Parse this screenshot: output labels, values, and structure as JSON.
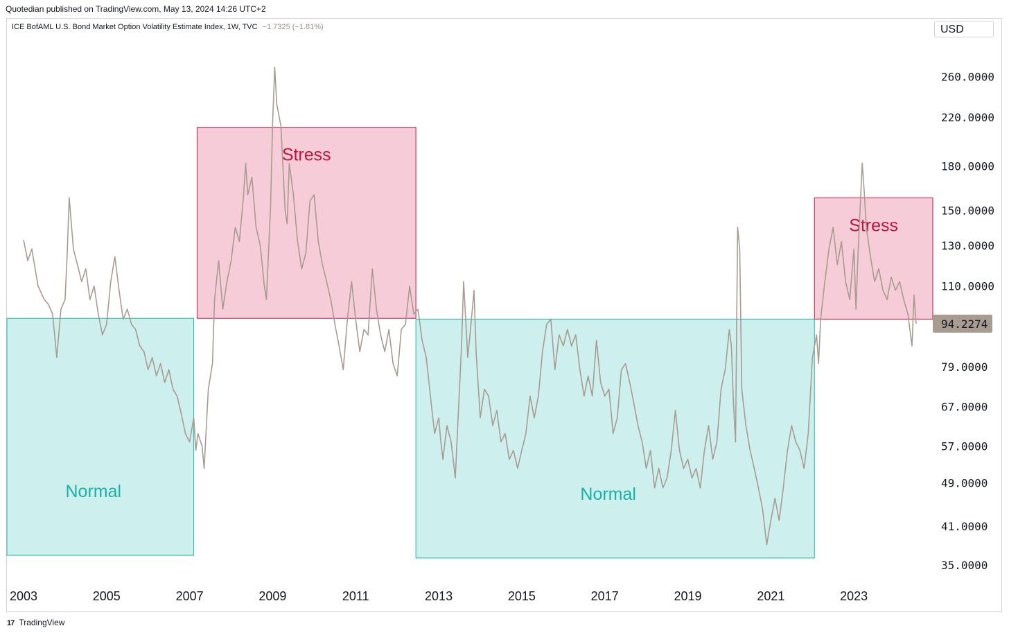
{
  "header": {
    "published": "Quotedian published on TradingView.com, May 13, 2024 14:26 UTC+2"
  },
  "legend": {
    "symbol": "ICE BofAML U.S. Bond Market Option Volatility Estimate Index, 1W, TVC",
    "change": "−1.7325 (−1.81%)"
  },
  "currency": "USD",
  "last_price": "94.2274",
  "footer": {
    "logo_mark": "17",
    "brand": "TradingView"
  },
  "colors": {
    "line": "#a89b90",
    "stress_fill": "#f5ccd8",
    "stress_border": "#c71a4b",
    "stress_text": "#c4123f",
    "normal_fill": "#cdf0ee",
    "normal_border": "#22b5a8",
    "normal_text": "#17b2a4",
    "price_label_bg": "#a89b90"
  },
  "chart_data": {
    "type": "line",
    "title": "",
    "xlabel": "",
    "ylabel": "",
    "y_scale": "log",
    "xlim": [
      2002.6,
      2024.9
    ],
    "ylim": [
      34,
      300
    ],
    "x_ticks": [
      "2003",
      "2005",
      "2007",
      "2009",
      "2011",
      "2013",
      "2015",
      "2017",
      "2019",
      "2021",
      "2023"
    ],
    "y_ticks": [
      "260.0000",
      "220.0000",
      "180.0000",
      "150.0000",
      "130.0000",
      "110.0000",
      "79.0000",
      "67.0000",
      "57.0000",
      "49.0000",
      "41.0000",
      "35.0000"
    ],
    "last_value": 94.2274,
    "series": [
      {
        "name": "",
        "points": [
          [
            2003.0,
            133
          ],
          [
            2003.1,
            122
          ],
          [
            2003.2,
            128
          ],
          [
            2003.35,
            110
          ],
          [
            2003.5,
            104
          ],
          [
            2003.6,
            102
          ],
          [
            2003.7,
            98
          ],
          [
            2003.8,
            82
          ],
          [
            2003.9,
            100
          ],
          [
            2004.0,
            104
          ],
          [
            2004.05,
            125
          ],
          [
            2004.1,
            158
          ],
          [
            2004.2,
            128
          ],
          [
            2004.3,
            120
          ],
          [
            2004.4,
            112
          ],
          [
            2004.5,
            118
          ],
          [
            2004.6,
            104
          ],
          [
            2004.7,
            110
          ],
          [
            2004.8,
            98
          ],
          [
            2004.9,
            90
          ],
          [
            2005.0,
            94
          ],
          [
            2005.1,
            112
          ],
          [
            2005.2,
            124
          ],
          [
            2005.3,
            108
          ],
          [
            2005.4,
            96
          ],
          [
            2005.5,
            100
          ],
          [
            2005.6,
            94
          ],
          [
            2005.7,
            92
          ],
          [
            2005.8,
            86
          ],
          [
            2005.9,
            84
          ],
          [
            2006.0,
            78
          ],
          [
            2006.1,
            82
          ],
          [
            2006.2,
            76
          ],
          [
            2006.3,
            80
          ],
          [
            2006.4,
            74
          ],
          [
            2006.5,
            78
          ],
          [
            2006.6,
            72
          ],
          [
            2006.7,
            70
          ],
          [
            2006.8,
            65
          ],
          [
            2006.9,
            60
          ],
          [
            2007.0,
            58
          ],
          [
            2007.1,
            64
          ],
          [
            2007.15,
            56
          ],
          [
            2007.2,
            60
          ],
          [
            2007.3,
            57
          ],
          [
            2007.35,
            52
          ],
          [
            2007.45,
            72
          ],
          [
            2007.55,
            80
          ],
          [
            2007.6,
            104
          ],
          [
            2007.7,
            122
          ],
          [
            2007.8,
            100
          ],
          [
            2007.9,
            112
          ],
          [
            2008.0,
            122
          ],
          [
            2008.1,
            140
          ],
          [
            2008.2,
            132
          ],
          [
            2008.3,
            160
          ],
          [
            2008.35,
            182
          ],
          [
            2008.4,
            160
          ],
          [
            2008.5,
            172
          ],
          [
            2008.6,
            140
          ],
          [
            2008.7,
            130
          ],
          [
            2008.75,
            120
          ],
          [
            2008.8,
            110
          ],
          [
            2008.85,
            104
          ],
          [
            2008.95,
            152
          ],
          [
            2009.0,
            215
          ],
          [
            2009.05,
            270
          ],
          [
            2009.1,
            232
          ],
          [
            2009.2,
            212
          ],
          [
            2009.3,
            150
          ],
          [
            2009.35,
            142
          ],
          [
            2009.4,
            182
          ],
          [
            2009.5,
            160
          ],
          [
            2009.6,
            132
          ],
          [
            2009.7,
            118
          ],
          [
            2009.8,
            126
          ],
          [
            2009.9,
            156
          ],
          [
            2010.0,
            160
          ],
          [
            2010.1,
            132
          ],
          [
            2010.2,
            120
          ],
          [
            2010.3,
            112
          ],
          [
            2010.4,
            104
          ],
          [
            2010.5,
            94
          ],
          [
            2010.6,
            86
          ],
          [
            2010.7,
            78
          ],
          [
            2010.8,
            96
          ],
          [
            2010.9,
            112
          ],
          [
            2011.0,
            96
          ],
          [
            2011.1,
            84
          ],
          [
            2011.2,
            92
          ],
          [
            2011.3,
            90
          ],
          [
            2011.4,
            118
          ],
          [
            2011.5,
            100
          ],
          [
            2011.6,
            90
          ],
          [
            2011.7,
            84
          ],
          [
            2011.8,
            92
          ],
          [
            2011.9,
            80
          ],
          [
            2012.0,
            76
          ],
          [
            2012.1,
            92
          ],
          [
            2012.2,
            94
          ],
          [
            2012.3,
            110
          ],
          [
            2012.4,
            98
          ],
          [
            2012.5,
            100
          ],
          [
            2012.6,
            88
          ],
          [
            2012.7,
            82
          ],
          [
            2012.8,
            70
          ],
          [
            2012.9,
            60
          ],
          [
            2013.0,
            64
          ],
          [
            2013.05,
            58
          ],
          [
            2013.1,
            54
          ],
          [
            2013.2,
            62
          ],
          [
            2013.3,
            58
          ],
          [
            2013.4,
            50
          ],
          [
            2013.5,
            72
          ],
          [
            2013.55,
            86
          ],
          [
            2013.6,
            112
          ],
          [
            2013.7,
            82
          ],
          [
            2013.8,
            98
          ],
          [
            2013.85,
            108
          ],
          [
            2013.9,
            84
          ],
          [
            2014.0,
            64
          ],
          [
            2014.1,
            72
          ],
          [
            2014.2,
            70
          ],
          [
            2014.3,
            62
          ],
          [
            2014.4,
            66
          ],
          [
            2014.5,
            58
          ],
          [
            2014.6,
            60
          ],
          [
            2014.7,
            54
          ],
          [
            2014.8,
            56
          ],
          [
            2014.9,
            52
          ],
          [
            2015.0,
            56
          ],
          [
            2015.1,
            60
          ],
          [
            2015.2,
            70
          ],
          [
            2015.3,
            64
          ],
          [
            2015.4,
            70
          ],
          [
            2015.5,
            84
          ],
          [
            2015.6,
            94
          ],
          [
            2015.7,
            96
          ],
          [
            2015.8,
            78
          ],
          [
            2015.9,
            90
          ],
          [
            2016.0,
            86
          ],
          [
            2016.1,
            92
          ],
          [
            2016.2,
            86
          ],
          [
            2016.3,
            90
          ],
          [
            2016.4,
            78
          ],
          [
            2016.5,
            70
          ],
          [
            2016.6,
            76
          ],
          [
            2016.7,
            70
          ],
          [
            2016.8,
            88
          ],
          [
            2016.9,
            74
          ],
          [
            2017.0,
            70
          ],
          [
            2017.1,
            72
          ],
          [
            2017.2,
            60
          ],
          [
            2017.3,
            64
          ],
          [
            2017.4,
            78
          ],
          [
            2017.5,
            80
          ],
          [
            2017.6,
            74
          ],
          [
            2017.7,
            68
          ],
          [
            2017.8,
            62
          ],
          [
            2017.9,
            58
          ],
          [
            2018.0,
            52
          ],
          [
            2018.1,
            56
          ],
          [
            2018.2,
            48
          ],
          [
            2018.3,
            52
          ],
          [
            2018.4,
            48
          ],
          [
            2018.5,
            50
          ],
          [
            2018.6,
            56
          ],
          [
            2018.7,
            66
          ],
          [
            2018.8,
            56
          ],
          [
            2018.9,
            52
          ],
          [
            2019.0,
            54
          ],
          [
            2019.1,
            50
          ],
          [
            2019.2,
            52
          ],
          [
            2019.3,
            48
          ],
          [
            2019.4,
            56
          ],
          [
            2019.5,
            62
          ],
          [
            2019.6,
            54
          ],
          [
            2019.7,
            58
          ],
          [
            2019.8,
            72
          ],
          [
            2019.9,
            78
          ],
          [
            2020.0,
            92
          ],
          [
            2020.05,
            86
          ],
          [
            2020.1,
            68
          ],
          [
            2020.15,
            58
          ],
          [
            2020.2,
            140
          ],
          [
            2020.25,
            128
          ],
          [
            2020.3,
            72
          ],
          [
            2020.4,
            62
          ],
          [
            2020.5,
            56
          ],
          [
            2020.6,
            52
          ],
          [
            2020.7,
            48
          ],
          [
            2020.8,
            44
          ],
          [
            2020.9,
            38
          ],
          [
            2021.0,
            42
          ],
          [
            2021.1,
            46
          ],
          [
            2021.2,
            42
          ],
          [
            2021.3,
            48
          ],
          [
            2021.4,
            56
          ],
          [
            2021.5,
            62
          ],
          [
            2021.6,
            58
          ],
          [
            2021.7,
            56
          ],
          [
            2021.8,
            52
          ],
          [
            2021.9,
            60
          ],
          [
            2022.0,
            82
          ],
          [
            2022.1,
            90
          ],
          [
            2022.15,
            80
          ],
          [
            2022.2,
            96
          ],
          [
            2022.3,
            112
          ],
          [
            2022.4,
            128
          ],
          [
            2022.5,
            140
          ],
          [
            2022.6,
            120
          ],
          [
            2022.7,
            132
          ],
          [
            2022.8,
            112
          ],
          [
            2022.9,
            104
          ],
          [
            2023.0,
            128
          ],
          [
            2023.05,
            100
          ],
          [
            2023.1,
            126
          ],
          [
            2023.2,
            182
          ],
          [
            2023.25,
            162
          ],
          [
            2023.3,
            140
          ],
          [
            2023.4,
            124
          ],
          [
            2023.5,
            112
          ],
          [
            2023.6,
            118
          ],
          [
            2023.7,
            108
          ],
          [
            2023.8,
            104
          ],
          [
            2023.9,
            114
          ],
          [
            2024.0,
            108
          ],
          [
            2024.1,
            112
          ],
          [
            2024.2,
            104
          ],
          [
            2024.3,
            98
          ],
          [
            2024.4,
            86
          ],
          [
            2024.45,
            106
          ],
          [
            2024.5,
            94.2274
          ]
        ]
      }
    ],
    "annotations": [
      {
        "type": "box",
        "kind": "stress",
        "label": "Stress",
        "x0": 2007.18,
        "x1": 2012.45,
        "y0": 96.3,
        "y1": 211
      },
      {
        "type": "box",
        "kind": "stress",
        "label": "Stress",
        "x0": 2022.05,
        "x1": 2024.9,
        "y0": 96.0,
        "y1": 158
      },
      {
        "type": "box",
        "kind": "normal",
        "label": "Normal",
        "x0": 2002.6,
        "x1": 2007.1,
        "y0": 36.4,
        "y1": 96.3
      },
      {
        "type": "box",
        "kind": "normal",
        "label": "Normal",
        "x0": 2012.45,
        "x1": 2022.05,
        "y0": 36.0,
        "y1": 96.0
      }
    ]
  }
}
